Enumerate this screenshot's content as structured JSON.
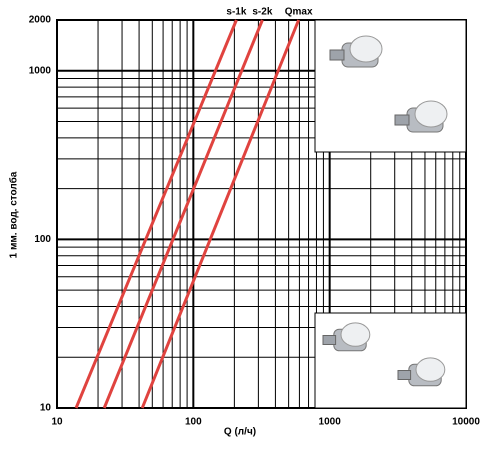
{
  "chart_data": {
    "type": "line",
    "x_label": "Q (л/ч)",
    "y_label": "1 мм. вод. столба",
    "log_x": true,
    "log_y": true,
    "grid": true,
    "xlim": [
      10,
      10000
    ],
    "ylim": [
      10,
      2000
    ],
    "xticks": [
      10,
      100,
      1000,
      10000
    ],
    "yticks": [
      10,
      100,
      1000,
      2000
    ],
    "series": [
      {
        "name": "s-1k",
        "color": "#e0433f",
        "x": [
          13.8,
          207
        ],
        "values": [
          10,
          2000
        ]
      },
      {
        "name": "s-2k",
        "color": "#e0433f",
        "x": [
          22.2,
          321
        ],
        "values": [
          10,
          2000
        ]
      },
      {
        "name": "Qmax",
        "color": "#e0433f",
        "x": [
          42.2,
          592
        ],
        "values": [
          10,
          2000
        ]
      }
    ]
  }
}
